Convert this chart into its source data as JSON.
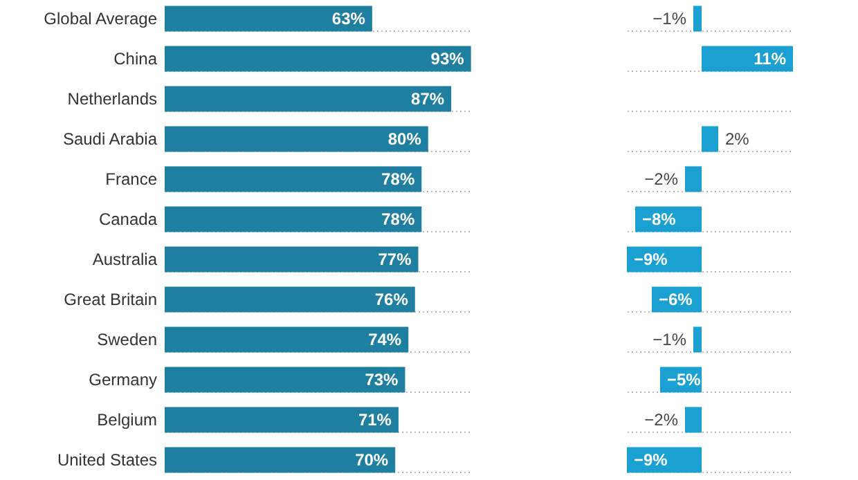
{
  "chart_data": [
    {
      "type": "bar",
      "orientation": "horizontal",
      "categories": [
        "Global Average",
        "China",
        "Netherlands",
        "Saudi Arabia",
        "France",
        "Canada",
        "Australia",
        "Great Britain",
        "Sweden",
        "Germany",
        "Belgium",
        "United States"
      ],
      "values": [
        63,
        93,
        87,
        80,
        78,
        78,
        77,
        76,
        74,
        73,
        71,
        70
      ],
      "color": "#1f7fa0",
      "value_labels": [
        "63%",
        "93%",
        "87%",
        "80%",
        "78%",
        "78%",
        "77%",
        "76%",
        "74%",
        "73%",
        "71%",
        "70%"
      ],
      "tick_labels": "y",
      "grid": "y"
    },
    {
      "type": "bar",
      "orientation": "horizontal",
      "categories": [
        null,
        null,
        null,
        null,
        null,
        null,
        null,
        null,
        null,
        null,
        null,
        null
      ],
      "values": [
        -1,
        11,
        null,
        2,
        -2,
        -8,
        -9,
        -6,
        -1,
        -5,
        -2,
        -9
      ],
      "color": "#1ba1d1",
      "value_labels": [
        "−1%",
        "11%",
        null,
        "2%",
        "−2%",
        "−8%",
        "−9%",
        "−6%",
        "−1%",
        "−5%",
        "−2%",
        "−9%"
      ],
      "tick_labels": false,
      "grid": "y"
    }
  ]
}
